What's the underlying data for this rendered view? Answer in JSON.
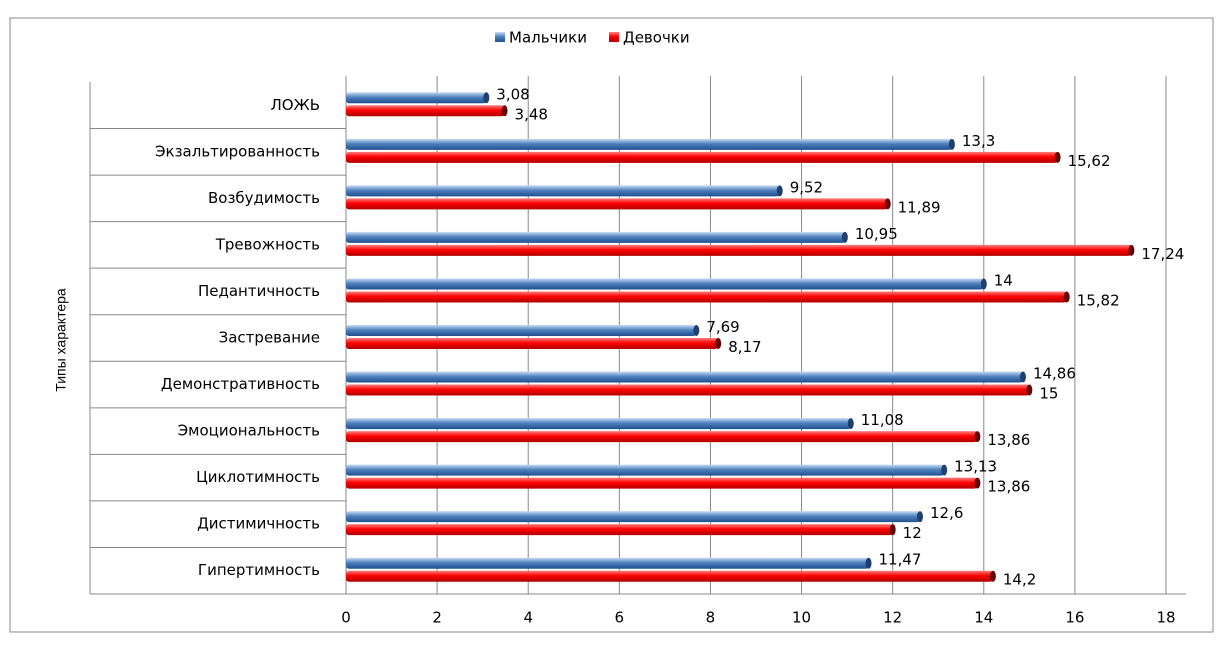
{
  "chart_data": {
    "type": "hbar",
    "y_axis_label": "Типы характера",
    "categories": [
      "ЛОЖЬ",
      "Экзальтированность",
      "Возбудимость",
      "Тревожность",
      "Педантичность",
      "Застревание",
      "Демонстративность",
      "Эмоциональность",
      "Циклотимность",
      "Дистимичность",
      "Гипертимность"
    ],
    "series": [
      {
        "name": "Мальчики",
        "color": "#4f81bd",
        "values": [
          3.08,
          13.3,
          9.52,
          10.95,
          14,
          7.69,
          14.86,
          11.08,
          13.13,
          12.6,
          11.47
        ],
        "value_labels": [
          "3,08",
          "13,3",
          "9,52",
          "10,95",
          "14",
          "7,69",
          "14,86",
          "11,08",
          "13,13",
          "12,6",
          "11,47"
        ]
      },
      {
        "name": "Девочки",
        "color": "#ff0000",
        "values": [
          3.48,
          15.62,
          11.89,
          17.24,
          15.82,
          8.17,
          15,
          13.86,
          13.86,
          12,
          14.2
        ],
        "value_labels": [
          "3,48",
          "15,62",
          "11,89",
          "17,24",
          "15,82",
          "8,17",
          "15",
          "13,86",
          "13,86",
          "12",
          "14,2"
        ]
      }
    ],
    "xlim": [
      0,
      18
    ],
    "xticks": [
      0,
      2,
      4,
      6,
      8,
      10,
      12,
      14,
      16,
      18
    ],
    "grid": true,
    "legend": "top"
  }
}
